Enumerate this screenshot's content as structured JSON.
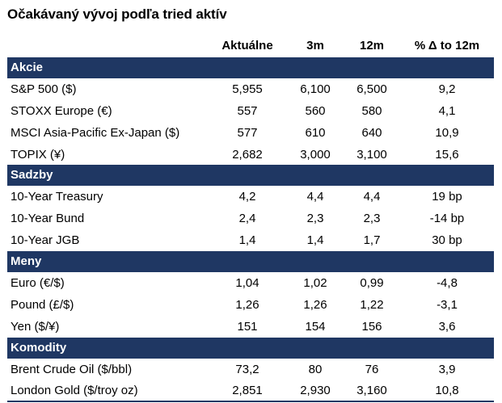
{
  "title": "Očakávaný vývoj podľa tried aktív",
  "headers": [
    "Aktuálne",
    "3m",
    "12m",
    "% Δ to 12m"
  ],
  "sections": [
    {
      "name": "Akcie",
      "rows": [
        {
          "label": "S&P 500 ($)",
          "current": "5,955",
          "m3": "6,100",
          "m12": "6,500",
          "delta": "9,2"
        },
        {
          "label": "STOXX Europe (€)",
          "current": "557",
          "m3": "560",
          "m12": "580",
          "delta": "4,1"
        },
        {
          "label": "MSCI Asia-Pacific Ex-Japan ($)",
          "current": "577",
          "m3": "610",
          "m12": "640",
          "delta": "10,9"
        },
        {
          "label": "TOPIX (¥)",
          "current": "2,682",
          "m3": "3,000",
          "m12": "3,100",
          "delta": "15,6"
        }
      ]
    },
    {
      "name": "Sadzby",
      "rows": [
        {
          "label": "10-Year Treasury",
          "current": "4,2",
          "m3": "4,4",
          "m12": "4,4",
          "delta": "19 bp"
        },
        {
          "label": "10-Year Bund",
          "current": "2,4",
          "m3": "2,3",
          "m12": "2,3",
          "delta": "-14 bp"
        },
        {
          "label": "10-Year JGB",
          "current": "1,4",
          "m3": "1,4",
          "m12": "1,7",
          "delta": "30 bp"
        }
      ]
    },
    {
      "name": "Meny",
      "rows": [
        {
          "label": "Euro (€/$)",
          "current": "1,04",
          "m3": "1,02",
          "m12": "0,99",
          "delta": "-4,8"
        },
        {
          "label": "Pound (£/$)",
          "current": "1,26",
          "m3": "1,26",
          "m12": "1,22",
          "delta": "-3,1"
        },
        {
          "label": "Yen ($/¥)",
          "current": "151",
          "m3": "154",
          "m12": "156",
          "delta": "3,6"
        }
      ]
    },
    {
      "name": "Komodity",
      "rows": [
        {
          "label": "Brent Crude Oil ($/bbl)",
          "current": "73,2",
          "m3": "80",
          "m12": "76",
          "delta": "3,9"
        },
        {
          "label": "London Gold ($/troy oz)",
          "current": "2,851",
          "m3": "2,930",
          "m12": "3,160",
          "delta": "10,8"
        }
      ]
    }
  ],
  "colors": {
    "section_bar": "#1f3763",
    "section_text": "#ffffff"
  }
}
